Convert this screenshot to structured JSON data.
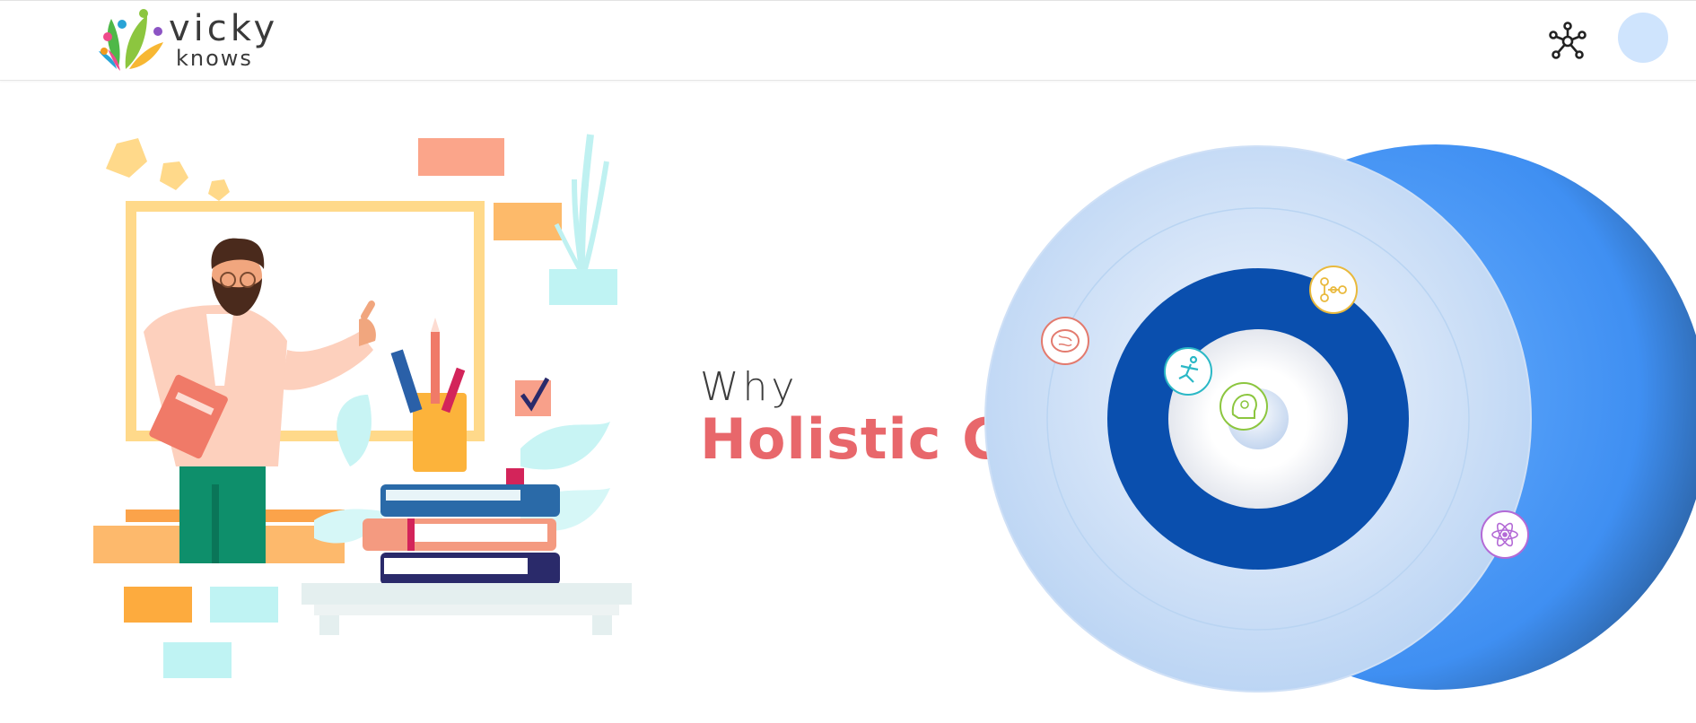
{
  "header": {
    "logo_line1": "vicky",
    "logo_line2": "knows",
    "network_icon": "network-icon",
    "avatar_icon": "avatar"
  },
  "hero": {
    "why": "Why",
    "headline": "Holistic Growth?"
  },
  "icons": {
    "brain": "brain-icon",
    "hierarchy": "hierarchy-icon",
    "person": "running-person-icon",
    "head": "mind-head-icon",
    "atom": "atom-icon"
  },
  "colors": {
    "accent": "#e8676b",
    "ring_dark": "#0a4fae",
    "ring_bright": "#4f9cf7",
    "ring_light": "#dbe7f8"
  }
}
